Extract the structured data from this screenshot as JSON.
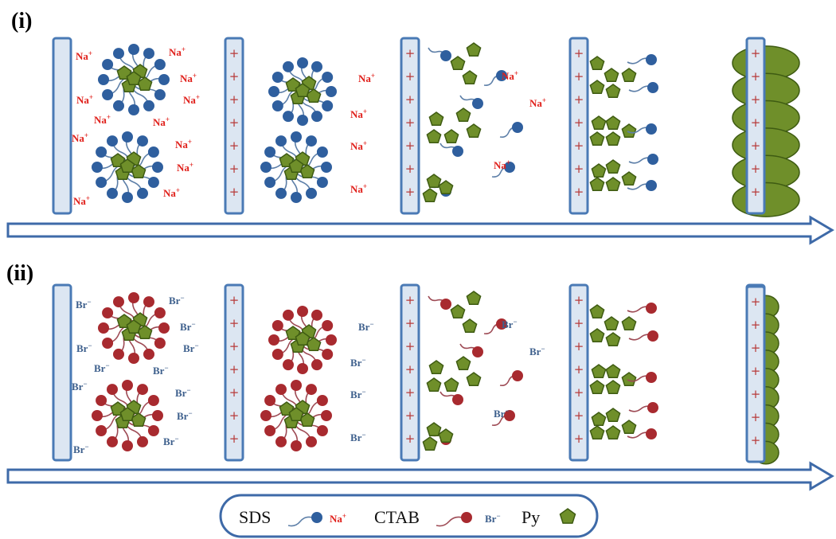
{
  "panels": [
    {
      "label": "(i)",
      "counter_ion": "Na",
      "counter_ion_sup": "+",
      "surfactant_color": "#2f5f9e",
      "tail_color": "#5d7fa8"
    },
    {
      "label": "(ii)",
      "counter_ion": "Br",
      "counter_ion_sup": "−",
      "surfactant_color": "#a82a2f",
      "tail_color": "#9e4b55"
    }
  ],
  "electrode_charge_symbol": "+",
  "legend": {
    "sds_label": "SDS",
    "sds_ion": "Na",
    "sds_ion_sup": "+",
    "ctab_label": "CTAB",
    "ctab_ion": "Br",
    "ctab_ion_sup": "−",
    "py_label": "Py"
  },
  "colors": {
    "electrode_fill": "#dce6f2",
    "electrode_stroke": "#4a7ab5",
    "pentagon_fill": "#6f8f2a",
    "pentagon_stroke": "#3e5b12",
    "arrow_stroke": "#3e6aa8",
    "film_fill": "#6f8f2a"
  }
}
